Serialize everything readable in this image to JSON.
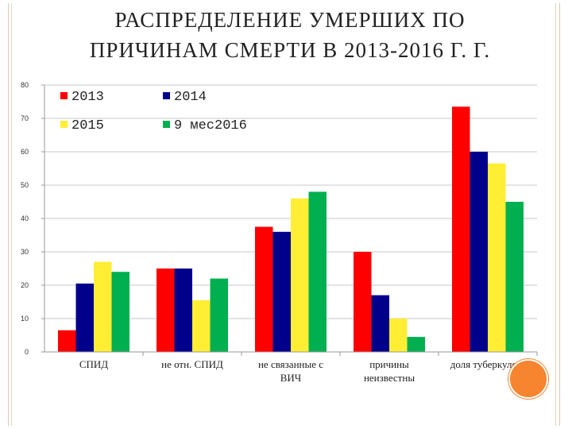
{
  "title": {
    "line1": "РАСПРЕДЕЛЕНИЕ УМЕРШИХ ПО",
    "line2": "ПРИЧИНАМ СМЕРТИ В 2013-2016 Г. Г."
  },
  "chart_data": {
    "type": "bar",
    "categories": [
      "СПИД",
      "не отн. СПИД",
      "не связанные с ВИЧ",
      "причины неизвестны",
      "доля туберкулеза"
    ],
    "category_lines": [
      [
        "СПИД"
      ],
      [
        "не отн. СПИД"
      ],
      [
        "не связанные с",
        "ВИЧ"
      ],
      [
        "причины",
        "неизвестны"
      ],
      [
        "доля туберкулеза"
      ]
    ],
    "series": [
      {
        "name": "2013",
        "color": "#ff0000",
        "values": [
          6.5,
          25,
          37.5,
          30,
          73.5
        ]
      },
      {
        "name": "2014",
        "color": "#00008b",
        "values": [
          20.5,
          25,
          36,
          17,
          60
        ]
      },
      {
        "name": "2015",
        "color": "#ffee33",
        "values": [
          27,
          15.5,
          46,
          10,
          56.5
        ]
      },
      {
        "name": "9 мес2016",
        "color": "#00b050",
        "values": [
          24,
          22,
          48,
          4.5,
          45
        ]
      }
    ],
    "ylim": [
      0,
      80
    ],
    "yticks": [
      0,
      10,
      20,
      30,
      40,
      50,
      60,
      70,
      80
    ],
    "ytick_labels": [
      "0",
      "10",
      "20",
      "30",
      "40",
      "50",
      "60",
      "70",
      "80"
    ],
    "grid": true,
    "legend_position": "top-left",
    "xlabel": "",
    "ylabel": ""
  },
  "decor": {
    "accent_circle_color": "#f7842f",
    "frame_color": "#dcc9b3"
  }
}
